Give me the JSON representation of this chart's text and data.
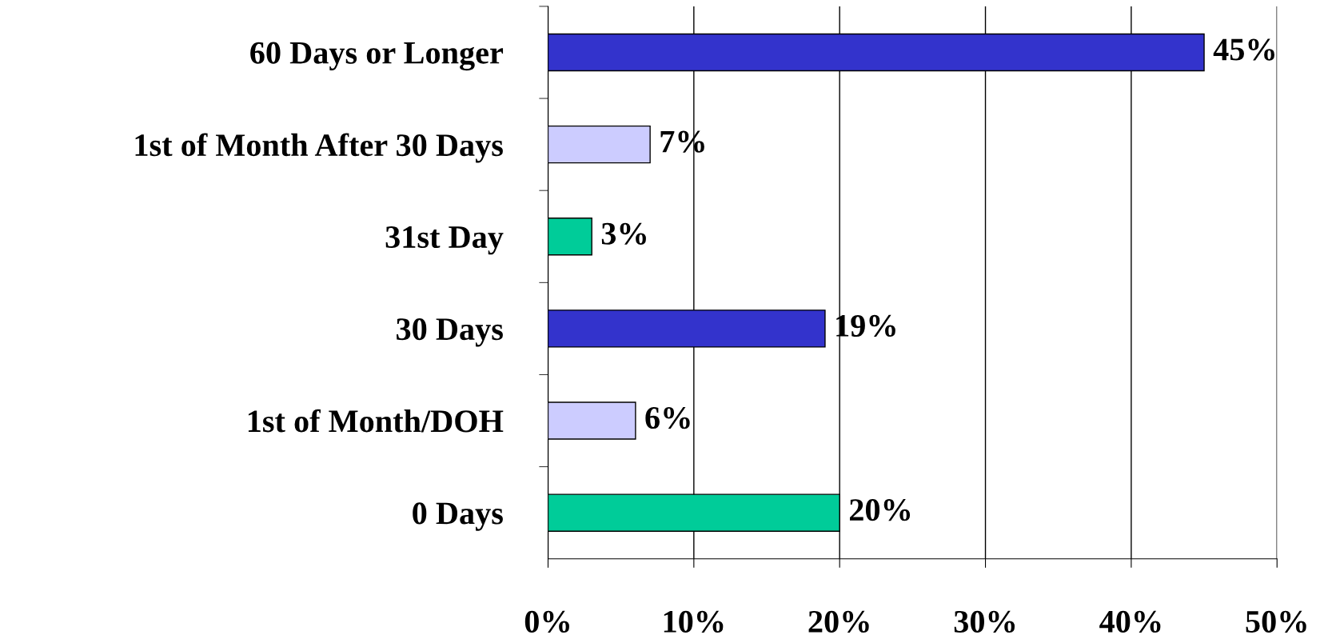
{
  "chart_data": {
    "type": "bar",
    "orientation": "horizontal",
    "categories": [
      "60 Days or Longer",
      "1st of Month After 30 Days",
      "31st Day",
      "30 Days",
      "1st of Month/DOH",
      "0 Days"
    ],
    "values": [
      45,
      7,
      3,
      19,
      6,
      20
    ],
    "colors": [
      "#3333cc",
      "#ccccff",
      "#00cc99",
      "#3333cc",
      "#ccccff",
      "#00cc99"
    ],
    "value_labels": [
      "45%",
      "7%",
      "3%",
      "19%",
      "6%",
      "20%"
    ],
    "xlim": [
      0,
      50
    ],
    "xticks": [
      {
        "value": 0,
        "label": "0%"
      },
      {
        "value": 10,
        "label": "10%"
      },
      {
        "value": 20,
        "label": "20%"
      },
      {
        "value": 30,
        "label": "30%"
      },
      {
        "value": 40,
        "label": "40%"
      },
      {
        "value": 50,
        "label": "50%"
      }
    ],
    "grid": "x",
    "legend": false
  }
}
